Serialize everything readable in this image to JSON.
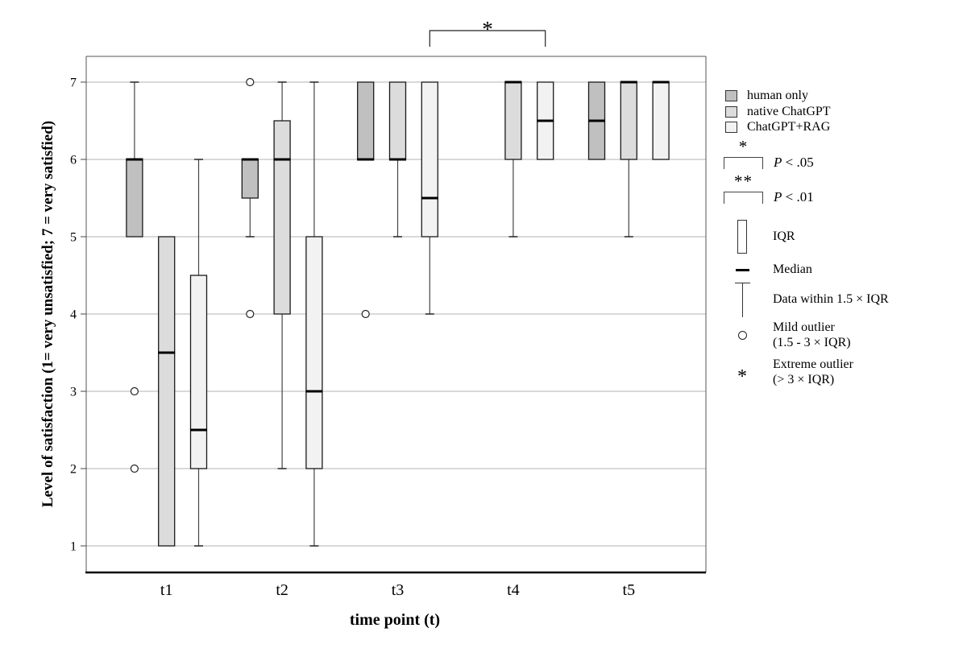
{
  "chart_data": {
    "type": "boxplot",
    "xlabel": "time point (t)",
    "ylabel": "Level of satisfaction (1= very unsatisfied; 7 = very satisfied)",
    "ylim": [
      1,
      7
    ],
    "yticks": [
      1,
      2,
      3,
      4,
      5,
      6,
      7
    ],
    "categories": [
      "t1",
      "t2",
      "t3",
      "t4",
      "t5"
    ],
    "grid": "horizontal",
    "series": [
      {
        "name": "human only",
        "color": "#c0c0c0",
        "boxes": [
          {
            "t": "t1",
            "q1": 5,
            "q3": 6,
            "median": 6,
            "whisker_high": 7,
            "mild_outliers": [
              3,
              2
            ]
          },
          {
            "t": "t2",
            "q1": 5.5,
            "q3": 6,
            "median": 6,
            "whisker_low": 5,
            "mild_outliers": [
              7,
              4
            ]
          },
          {
            "t": "t3",
            "q1": 6,
            "q3": 7,
            "median": 6,
            "mild_outliers": [
              4
            ]
          },
          {
            "t": "t5",
            "q1": 6,
            "q3": 7,
            "median": 6.5
          }
        ]
      },
      {
        "name": "native ChatGPT",
        "color": "#dcdcdc",
        "boxes": [
          {
            "t": "t1",
            "q1": 1,
            "q3": 5,
            "median": 3.5
          },
          {
            "t": "t2",
            "q1": 4,
            "q3": 6.5,
            "median": 6,
            "whisker_high": 7,
            "whisker_low": 2
          },
          {
            "t": "t3",
            "q1": 6,
            "q3": 7,
            "median": 6,
            "whisker_low": 5
          },
          {
            "t": "t4",
            "q1": 6,
            "q3": 7,
            "median": 7,
            "whisker_low": 5
          },
          {
            "t": "t5",
            "q1": 6,
            "q3": 7,
            "median": 7,
            "whisker_low": 5
          }
        ]
      },
      {
        "name": "ChatGPT+RAG",
        "color": "#f2f2f2",
        "boxes": [
          {
            "t": "t1",
            "q1": 2,
            "q3": 4.5,
            "median": 2.5,
            "whisker_high": 6,
            "whisker_low": 1
          },
          {
            "t": "t2",
            "q1": 2,
            "q3": 5,
            "median": 3,
            "whisker_high": 7,
            "whisker_low": 1
          },
          {
            "t": "t3",
            "q1": 5,
            "q3": 7,
            "median": 5.5,
            "whisker_low": 4
          },
          {
            "t": "t4",
            "q1": 6,
            "q3": 7,
            "median": 6.5
          },
          {
            "t": "t5",
            "q1": 6,
            "q3": 7,
            "median": 7
          }
        ]
      }
    ],
    "significance": [
      {
        "t1": "t3",
        "series1": "ChatGPT+RAG",
        "t2": "t4",
        "series2": "ChatGPT+RAG",
        "label": "*"
      }
    ]
  },
  "legend": {
    "sig": [
      {
        "stars": "*",
        "p": "P",
        "rest": " < .05"
      },
      {
        "stars": "**",
        "p": "P",
        "rest": " < .01"
      }
    ],
    "items": [
      {
        "label": "IQR"
      },
      {
        "label": "Median"
      },
      {
        "label": "Data within 1.5 × IQR"
      },
      {
        "label": "Mild outlier",
        "label2": "(1.5 - 3 × IQR)"
      },
      {
        "label": "Extreme outlier",
        "label2": "(> 3 × IQR)"
      }
    ]
  }
}
